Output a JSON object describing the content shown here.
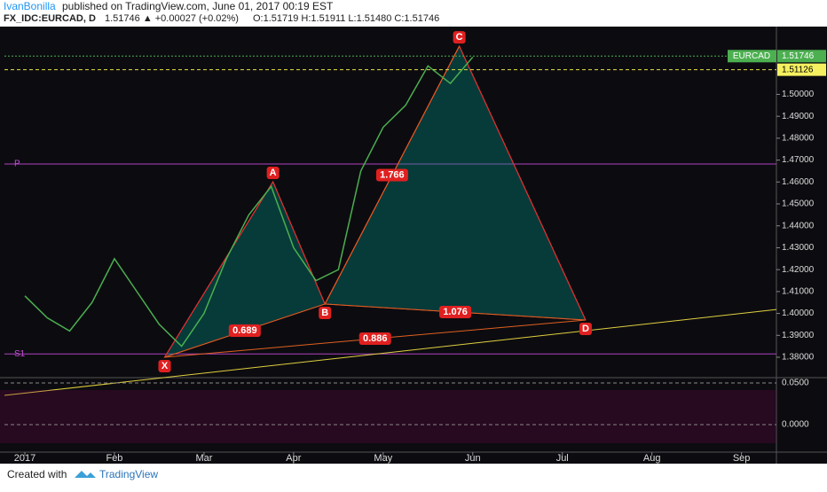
{
  "header": {
    "publisher": "IvanBonilla",
    "published": "published on TradingView.com, June 01, 2017 00:19 EST",
    "symbol": "FX_IDC:EURCAD, D",
    "quote": "1.51746 ▲ +0.00027 (+0.02%)",
    "ohlc": "O:1.51719 H:1.51911 L:1.51480 C:1.51746"
  },
  "chart_data": {
    "type": "line",
    "xlim": [
      -0.228,
      8.39
    ],
    "xticks": [
      {
        "value": 0,
        "label": "2017"
      },
      {
        "value": 1,
        "label": "Feb"
      },
      {
        "value": 2,
        "label": "Mar"
      },
      {
        "value": 3,
        "label": "Apr"
      },
      {
        "value": 4,
        "label": "May"
      },
      {
        "value": 5,
        "label": "Jun"
      },
      {
        "value": 6,
        "label": "Jul"
      },
      {
        "value": 7,
        "label": "Aug"
      },
      {
        "value": 8,
        "label": "Sep"
      }
    ],
    "ylim": [
      1.3711,
      1.5277
    ],
    "yticks": [
      {
        "value": 1.38,
        "label": "1.38000"
      },
      {
        "value": 1.39,
        "label": "1.39000"
      },
      {
        "value": 1.4,
        "label": "1.40000"
      },
      {
        "value": 1.41,
        "label": "1.41000"
      },
      {
        "value": 1.42,
        "label": "1.42000"
      },
      {
        "value": 1.43,
        "label": "1.43000"
      },
      {
        "value": 1.44,
        "label": "1.44000"
      },
      {
        "value": 1.45,
        "label": "1.45000"
      },
      {
        "value": 1.46,
        "label": "1.46000"
      },
      {
        "value": 1.47,
        "label": "1.47000"
      },
      {
        "value": 1.48,
        "label": "1.48000"
      },
      {
        "value": 1.49,
        "label": "1.49000"
      },
      {
        "value": 1.5,
        "label": "1.50000"
      }
    ],
    "series": [
      {
        "name": "EURCAD",
        "color": "#4caf50",
        "x": [
          0,
          0.25,
          0.5,
          0.75,
          1,
          1.25,
          1.5,
          1.75,
          2,
          2.25,
          2.5,
          2.75,
          3,
          3.25,
          3.5,
          3.75,
          4,
          4.25,
          4.5,
          4.75,
          5
        ],
        "values": [
          1.408,
          1.398,
          1.392,
          1.405,
          1.425,
          1.41,
          1.395,
          1.385,
          1.4,
          1.425,
          1.445,
          1.458,
          1.43,
          1.415,
          1.42,
          1.465,
          1.485,
          1.495,
          1.513,
          1.505,
          1.517
        ]
      }
    ],
    "last_price": {
      "value": 1.51746,
      "label": "1.51746"
    },
    "level": {
      "value": 1.51126,
      "label": "1.51126"
    },
    "pivots": [
      {
        "name": "P",
        "value": 1.4682
      },
      {
        "name": "S1",
        "value": 1.3815
      }
    ],
    "trendline": {
      "x": [
        -0.228,
        8.39
      ],
      "values": [
        1.3626,
        1.4018
      ]
    },
    "pattern": {
      "points": [
        "X",
        "A",
        "B",
        "C",
        "D"
      ],
      "x": [
        1.56,
        2.77,
        3.35,
        4.85,
        6.26
      ],
      "values": [
        1.38,
        1.4601,
        1.4043,
        1.522,
        1.397
      ],
      "ratios": [
        {
          "label": "0.689",
          "from": 0,
          "to": 2
        },
        {
          "label": "1.766",
          "from": 2,
          "to": 3
        },
        {
          "label": "1.076",
          "from": 2,
          "to": 4
        },
        {
          "label": "0.886",
          "from": 0,
          "to": 4
        }
      ]
    },
    "oscillator": {
      "ylim": [
        -0.0319,
        0.0553
      ],
      "yticks": [
        {
          "value": 0.05,
          "label": "0.0500"
        },
        {
          "value": 0,
          "label": "0.0000"
        }
      ]
    }
  },
  "footer": {
    "created": "Created with",
    "brand": "TradingView"
  }
}
